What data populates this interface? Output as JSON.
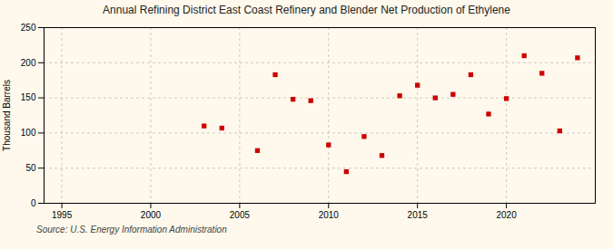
{
  "chart_data": {
    "type": "scatter",
    "title": "Annual Refining District East Coast Refinery and Blender Net Production of Ethylene",
    "ylabel": "Thousand Barrels",
    "source": "Source: U.S. Energy Information Administration",
    "x": [
      2003,
      2004,
      2006,
      2007,
      2008,
      2009,
      2010,
      2011,
      2012,
      2013,
      2014,
      2015,
      2016,
      2017,
      2018,
      2019,
      2020,
      2021,
      2022,
      2023,
      2024
    ],
    "values": [
      110,
      107,
      75,
      183,
      148,
      146,
      83,
      45,
      95,
      68,
      153,
      168,
      150,
      155,
      183,
      127,
      149,
      210,
      185,
      103,
      207
    ],
    "color": "#cc0000",
    "marker": "square",
    "xlim": [
      1994,
      2025
    ],
    "ylim": [
      0,
      250
    ],
    "xticks": [
      1995,
      2000,
      2005,
      2010,
      2015,
      2020
    ],
    "yticks": [
      0,
      50,
      100,
      150,
      200,
      250
    ],
    "grid": true
  }
}
